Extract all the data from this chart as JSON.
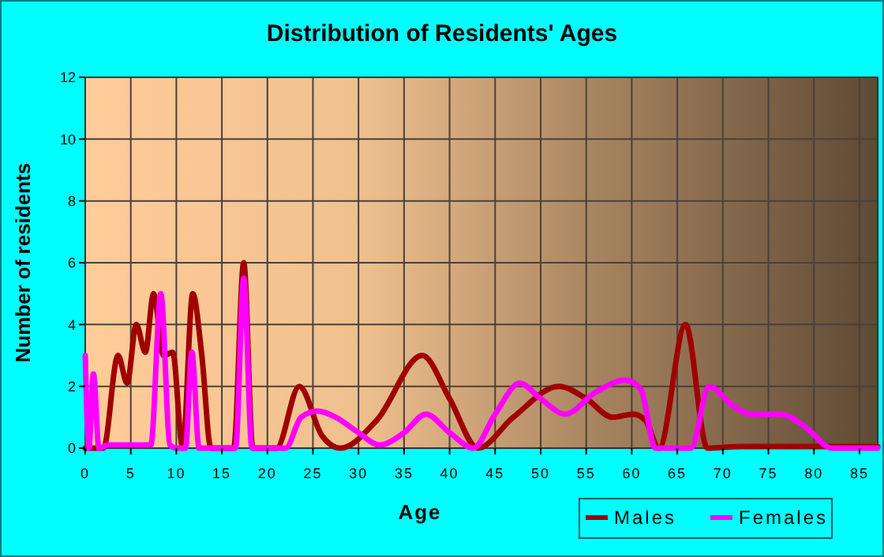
{
  "chart_data": {
    "type": "line",
    "title": "Distribution of Residents' Ages",
    "xlabel": "Age",
    "ylabel": "Number of residents",
    "xlim": [
      0,
      87
    ],
    "xticks": [
      0,
      5,
      10,
      15,
      20,
      25,
      30,
      35,
      40,
      45,
      50,
      55,
      60,
      65,
      70,
      75,
      80,
      85
    ],
    "ylim": [
      0,
      12
    ],
    "yticks": [
      0,
      2,
      4,
      6,
      8,
      10,
      12
    ],
    "grid": true,
    "legend": "bottom right",
    "series": [
      {
        "name": "Males",
        "color": "#a00000",
        "x": [
          0,
          1,
          2,
          3.6,
          4.6,
          5.6,
          6.6,
          7.5,
          8.6,
          9.6,
          10.7,
          11.8,
          12.8,
          13.8,
          15,
          16.3,
          17.4,
          18.4,
          19.5,
          21,
          23.5,
          26,
          28,
          32,
          37,
          40,
          43.1,
          47,
          52,
          55,
          57.9,
          60.2,
          61.5,
          63,
          65.9,
          68.3,
          72,
          80,
          87
        ],
        "values": [
          0,
          0,
          0,
          3,
          2.1,
          4,
          3.1,
          5,
          3,
          3.1,
          0,
          5,
          3,
          0,
          0,
          0,
          6,
          0,
          0,
          0,
          2,
          0.4,
          0,
          0.9,
          3,
          1.6,
          0,
          1,
          2,
          1.6,
          1,
          1.1,
          0.9,
          0,
          4,
          0,
          0.05,
          0.05,
          0.05
        ]
      },
      {
        "name": "Females",
        "color": "#ff00ff",
        "x": [
          0,
          0.4,
          0.9,
          1.5,
          2.5,
          5,
          7.2,
          8.3,
          9.3,
          10,
          11,
          11.7,
          12.5,
          14,
          16.5,
          17.4,
          18.3,
          20,
          22,
          23.7,
          25.5,
          27.5,
          30,
          32.3,
          35,
          37.4,
          40,
          42.6,
          45,
          47.7,
          50,
          52.7,
          56,
          59.3,
          61,
          62.6,
          65,
          66.5,
          68.5,
          71,
          73,
          76.3,
          79,
          82,
          87
        ],
        "values": [
          3,
          0,
          2.4,
          0,
          0.1,
          0.1,
          0.1,
          5,
          0.1,
          0,
          0,
          3.1,
          0,
          0,
          0,
          5.5,
          0,
          0,
          0,
          1,
          1.2,
          1,
          0.5,
          0.1,
          0.5,
          1.1,
          0.5,
          0,
          1.1,
          2.1,
          1.6,
          1.1,
          1.8,
          2.2,
          1.9,
          0,
          0,
          0,
          2,
          1.4,
          1.1,
          1.1,
          0.7,
          0,
          0
        ]
      }
    ]
  }
}
